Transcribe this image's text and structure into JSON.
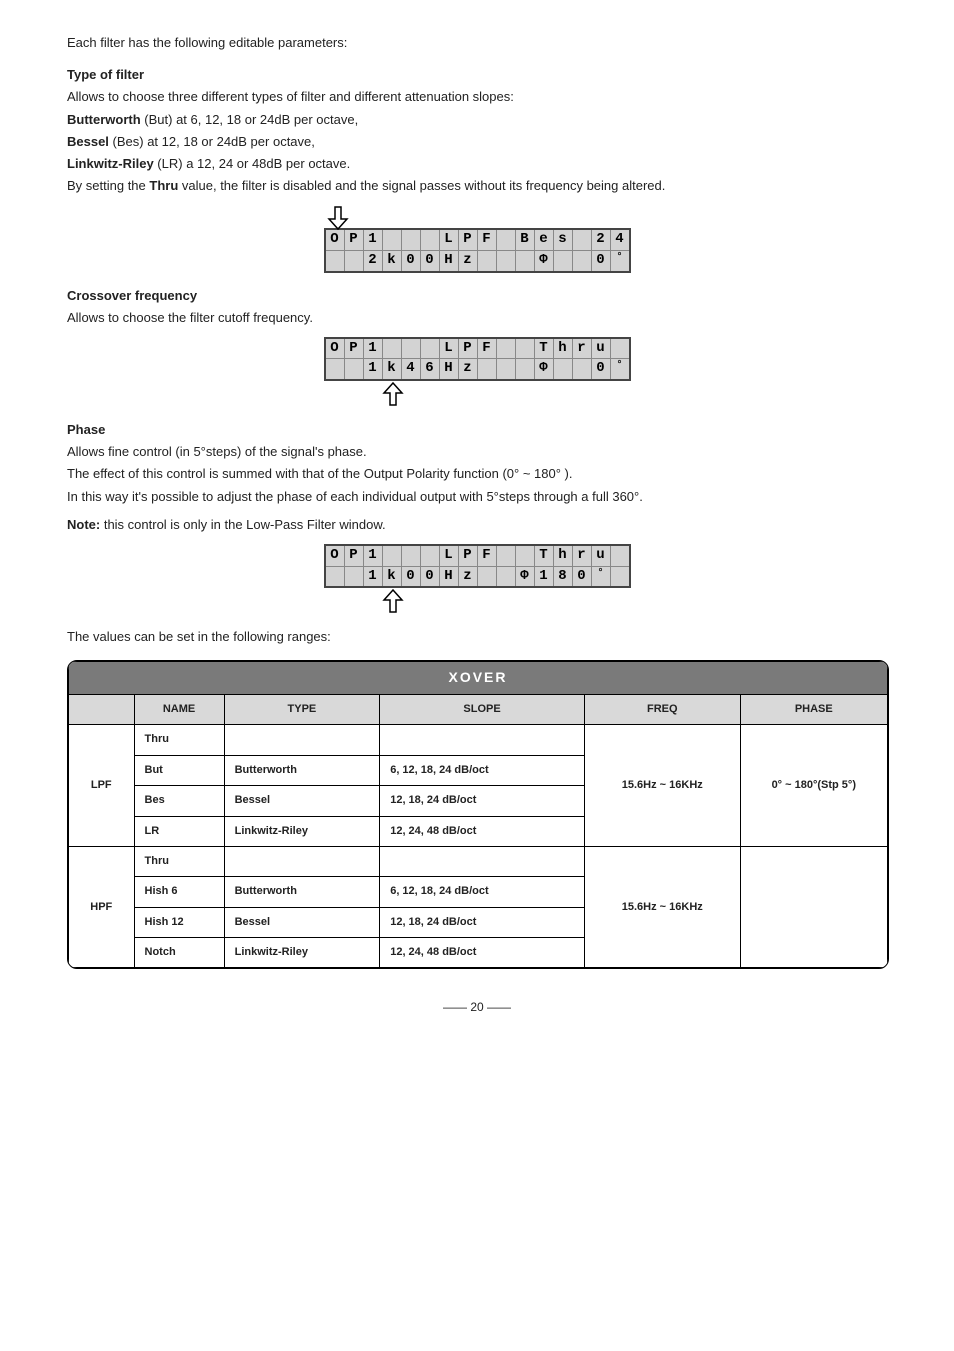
{
  "intro": "Each filter has the following editable parameters:",
  "typeFilter": {
    "heading": "Type of filter",
    "desc": "Allows to choose three different types of filter and different attenuation slopes:",
    "lines": [
      {
        "bold": "Butterworth",
        "rest": " (But) at 6, 12, 18 or 24dB per octave,"
      },
      {
        "bold": "Bessel",
        "rest": " (Bes) at 12, 18 or 24dB per octave,"
      },
      {
        "bold": "Linkwitz-Riley",
        "rest": " (LR) a 12, 24 or 48dB per octave."
      }
    ],
    "thruLine": {
      "pre": "By setting the ",
      "bold": "Thru",
      "post": " value, the filter is disabled and the signal passes without its frequency being altered."
    }
  },
  "lcd1": {
    "row1": [
      "O",
      "P",
      "1",
      "",
      "",
      "",
      "L",
      "P",
      "F",
      "",
      "B",
      "e",
      "s",
      "",
      "2",
      "4"
    ],
    "row2": [
      "",
      "",
      "2",
      "k",
      "0",
      "0",
      "H",
      "z",
      "",
      "",
      "",
      "Φ",
      "",
      "",
      "0",
      "°"
    ]
  },
  "crossover": {
    "heading": "Crossover frequency",
    "desc": "Allows to choose the filter cutoff frequency."
  },
  "lcd2": {
    "row1": [
      "O",
      "P",
      "1",
      "",
      "",
      "",
      "L",
      "P",
      "F",
      "",
      "",
      "T",
      "h",
      "r",
      "u",
      ""
    ],
    "row2": [
      "",
      "",
      "1",
      "k",
      "4",
      "6",
      "H",
      "z",
      "",
      "",
      "",
      "Φ",
      "",
      "",
      "0",
      "°"
    ]
  },
  "phase": {
    "heading": "Phase",
    "l1": "Allows fine control (in 5°steps) of the signal's phase.",
    "l2": "The effect of this control is summed with that of the Output Polarity function (0° ~ 180° ).",
    "l3": "In this way it's possible to adjust the phase of each individual output with 5°steps through a full 360°.",
    "note": {
      "bold": "Note:",
      "rest": " this control is only in the Low-Pass Filter window."
    }
  },
  "lcd3": {
    "row1": [
      "O",
      "P",
      "1",
      "",
      "",
      "",
      "L",
      "P",
      "F",
      "",
      "",
      "T",
      "h",
      "r",
      "u",
      ""
    ],
    "row2": [
      "",
      "",
      "1",
      "k",
      "0",
      "0",
      "H",
      "z",
      "",
      "",
      "Φ",
      "1",
      "8",
      "0",
      "°",
      ""
    ]
  },
  "rangesIntro": "The values can be set in the following ranges:",
  "xover": {
    "title": "XOVER",
    "headers": [
      "",
      "NAME",
      "TYPE",
      "SLOPE",
      "FREQ",
      "PHASE"
    ],
    "lpf": {
      "label": "LPF",
      "rows": [
        {
          "name": "Thru",
          "type": "",
          "slope": ""
        },
        {
          "name": "But",
          "type": "Butterworth",
          "slope": "6, 12, 18, 24 dB/oct"
        },
        {
          "name": "Bes",
          "type": "Bessel",
          "slope": "12, 18, 24 dB/oct"
        },
        {
          "name": "LR",
          "type": "Linkwitz-Riley",
          "slope": "12, 24, 48 dB/oct"
        }
      ],
      "freq": "15.6Hz ~ 16KHz",
      "phase": "0° ~ 180°(Stp 5°)"
    },
    "hpf": {
      "label": "HPF",
      "rows": [
        {
          "name": "Thru",
          "type": "",
          "slope": ""
        },
        {
          "name": "Hish 6",
          "type": "Butterworth",
          "slope": "6, 12, 18, 24 dB/oct"
        },
        {
          "name": "Hish 12",
          "type": "Bessel",
          "slope": "12, 18, 24 dB/oct"
        },
        {
          "name": "Notch",
          "type": "Linkwitz-Riley",
          "slope": "12, 24, 48 dB/oct"
        }
      ],
      "freq": "15.6Hz ~ 16KHz",
      "phase": ""
    }
  },
  "pageNum": "20"
}
